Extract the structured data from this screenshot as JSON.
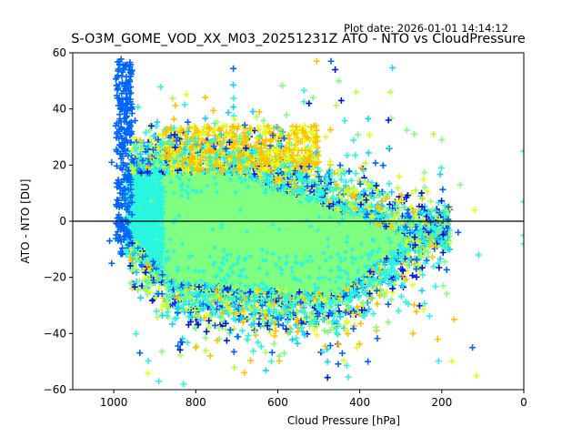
{
  "chart_data": {
    "type": "scatter",
    "title": "S-O3M_GOME_VOD_XX_M03_20251231Z ATO - NTO vs CloudPressure",
    "plot_date": "Plot date: 2026-01-01 14:14:12",
    "xlabel": "Cloud Pressure [hPa]",
    "ylabel": "ATO - NTO [DU]",
    "xlim": [
      1100,
      0
    ],
    "ylim": [
      -60,
      60
    ],
    "x_ticks": [
      1000,
      800,
      600,
      400,
      200,
      0
    ],
    "x_tick_labels": [
      "1000",
      "800",
      "600",
      "400",
      "200",
      "0"
    ],
    "y_ticks": [
      60,
      40,
      20,
      0,
      -20,
      -40,
      -60
    ],
    "y_tick_labels": [
      "60",
      "40",
      "20",
      "0",
      "−20",
      "−40",
      "−60"
    ],
    "reference_line_y": 0,
    "marker": "+",
    "grid": false,
    "colors": {
      "core": "#80ff80",
      "cyan": "#2af6e0",
      "lightblue": "#16d0ff",
      "blue": "#0064ff",
      "darkblue": "#0014e0",
      "yellow": "#e6ff1a",
      "orange": "#ffc000",
      "lime": "#b0ff4a"
    },
    "distribution_summary": {
      "dense_core_x_range": [
        950,
        180
      ],
      "dense_core_y_range": [
        -30,
        30
      ],
      "scatter_extent_y": [
        -58,
        58
      ]
    },
    "outlier_points": [
      {
        "x": 0,
        "y": 25,
        "color": "cyan"
      },
      {
        "x": 0,
        "y": 7,
        "color": "cyan"
      },
      {
        "x": 0,
        "y": -5,
        "color": "cyan"
      },
      {
        "x": 0,
        "y": -8,
        "color": "cyan"
      },
      {
        "x": 325,
        "y": 46,
        "color": "lime"
      },
      {
        "x": 445,
        "y": 43,
        "color": "darkblue"
      },
      {
        "x": 330,
        "y": 36,
        "color": "darkblue"
      },
      {
        "x": 220,
        "y": 31,
        "color": "lime"
      },
      {
        "x": 200,
        "y": 29,
        "color": "core"
      },
      {
        "x": 155,
        "y": 13,
        "color": "core"
      },
      {
        "x": 120,
        "y": 4,
        "color": "yellow"
      },
      {
        "x": 110,
        "y": -12,
        "color": "cyan"
      },
      {
        "x": 160,
        "y": -4,
        "color": "blue"
      },
      {
        "x": 125,
        "y": -45,
        "color": "blue"
      },
      {
        "x": 115,
        "y": -55,
        "color": "yellow"
      },
      {
        "x": 170,
        "y": -35,
        "color": "orange"
      },
      {
        "x": 210,
        "y": -42,
        "color": "orange"
      },
      {
        "x": 175,
        "y": -50,
        "color": "yellow"
      },
      {
        "x": 270,
        "y": -40,
        "color": "orange"
      },
      {
        "x": 460,
        "y": 54,
        "color": "darkblue"
      },
      {
        "x": 470,
        "y": 57,
        "color": "blue"
      },
      {
        "x": 505,
        "y": 57,
        "color": "orange"
      },
      {
        "x": 800,
        "y": -45,
        "color": "orange"
      },
      {
        "x": 890,
        "y": -57,
        "color": "cyan"
      },
      {
        "x": 830,
        "y": -58,
        "color": "cyan"
      },
      {
        "x": 380,
        "y": -50,
        "color": "blue"
      },
      {
        "x": 1005,
        "y": -15,
        "color": "blue"
      },
      {
        "x": 1010,
        "y": -7,
        "color": "blue"
      },
      {
        "x": 1005,
        "y": 21,
        "color": "blue"
      },
      {
        "x": 995,
        "y": 34,
        "color": "blue"
      }
    ]
  }
}
